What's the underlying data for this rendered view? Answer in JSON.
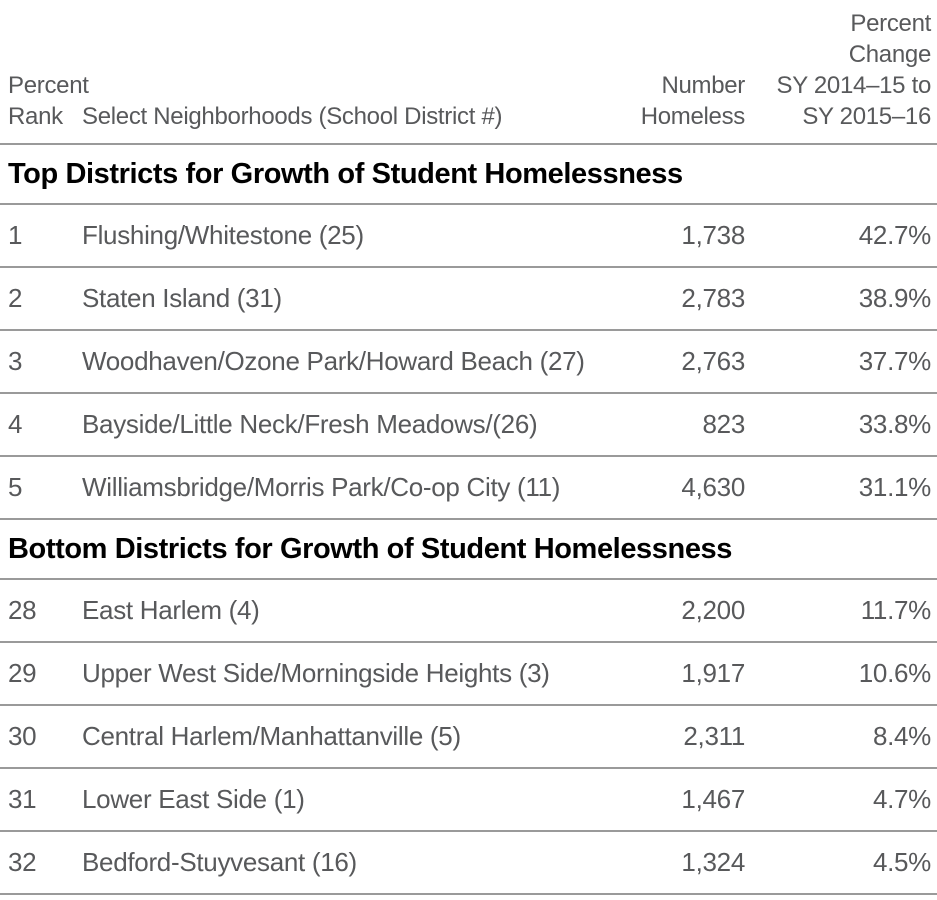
{
  "colors": {
    "text_gray": "#58595B",
    "section_title_black": "#000000",
    "rule_gray": "#9A9A9A",
    "background": "#FFFFFF"
  },
  "chart_data": {
    "type": "table",
    "header": {
      "rank": [
        "Percent",
        "Rank"
      ],
      "neighborhood": "Select Neighborhoods (School District #)",
      "number": [
        "Number",
        "Homeless"
      ],
      "pct_change": [
        "Percent",
        "Change",
        "SY 2014–15 to",
        "SY 2015–16"
      ]
    },
    "sections": [
      {
        "title": "Top Districts for Growth of Student Homelessness",
        "rows": [
          {
            "rank": "1",
            "neighborhood": "Flushing/Whitestone (25)",
            "number": "1,738",
            "pct": "42.7%"
          },
          {
            "rank": "2",
            "neighborhood": "Staten Island (31)",
            "number": "2,783",
            "pct": "38.9%"
          },
          {
            "rank": "3",
            "neighborhood": "Woodhaven/Ozone Park/Howard Beach (27)",
            "number": "2,763",
            "pct": "37.7%"
          },
          {
            "rank": "4",
            "neighborhood": "Bayside/Little Neck/Fresh Meadows/(26)",
            "number": "823",
            "pct": "33.8%"
          },
          {
            "rank": "5",
            "neighborhood": "Williamsbridge/Morris Park/Co-op City (11)",
            "number": "4,630",
            "pct": "31.1%"
          }
        ]
      },
      {
        "title": "Bottom Districts for Growth of Student Homelessness",
        "rows": [
          {
            "rank": "28",
            "neighborhood": "East Harlem (4)",
            "number": "2,200",
            "pct": "11.7%"
          },
          {
            "rank": "29",
            "neighborhood": "Upper West Side/Morningside Heights (3)",
            "number": "1,917",
            "pct": "10.6%"
          },
          {
            "rank": "30",
            "neighborhood": "Central Harlem/Manhattanville (5)",
            "number": "2,311",
            "pct": "8.4%"
          },
          {
            "rank": "31",
            "neighborhood": "Lower East Side (1)",
            "number": "1,467",
            "pct": "4.7%"
          },
          {
            "rank": "32",
            "neighborhood": "Bedford-Stuyvesant (16)",
            "number": "1,324",
            "pct": "4.5%"
          }
        ]
      }
    ]
  }
}
